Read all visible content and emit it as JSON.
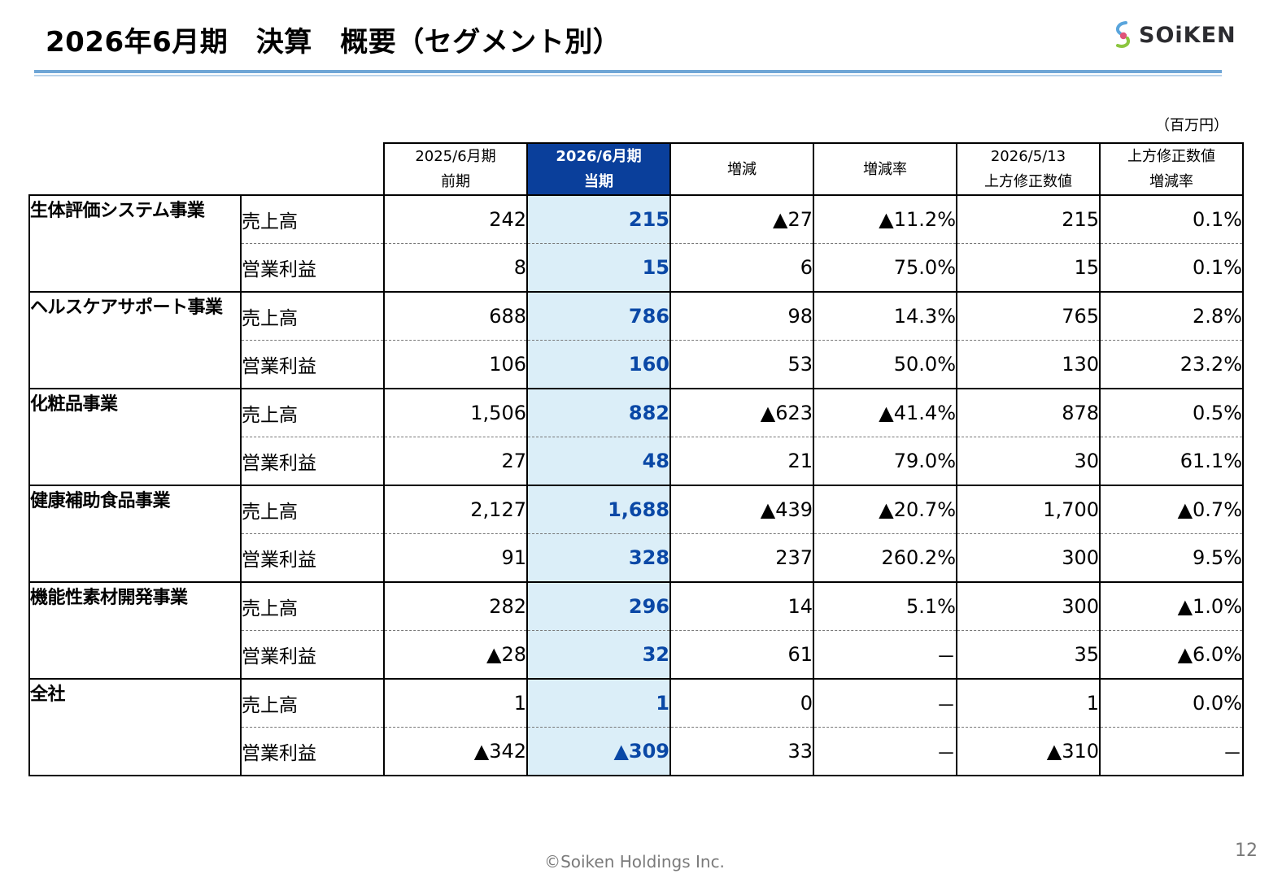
{
  "header": {
    "title": "2026年6月期　決算　概要（セグメント別）",
    "logo_text": "SOiKEN",
    "logo_icon": "soiken-logo-icon",
    "unit": "（百万円）"
  },
  "table": {
    "columns": [
      {
        "line1": "2025/6月期",
        "line2": "前期"
      },
      {
        "line1": "2026/6月期",
        "line2": "当期"
      },
      {
        "line1": "増減",
        "line2": ""
      },
      {
        "line1": "増減率",
        "line2": ""
      },
      {
        "line1": "2026/5/13",
        "line2": "上方修正数値"
      },
      {
        "line1": "上方修正数値",
        "line2": "増減率"
      }
    ],
    "segments": [
      {
        "name": "生体評価システム事業",
        "rows": [
          {
            "item": "売上高",
            "values": [
              "242",
              "215",
              "▲27",
              "▲11.2%",
              "215",
              "0.1%"
            ]
          },
          {
            "item": "営業利益",
            "values": [
              "8",
              "15",
              "6",
              "75.0%",
              "15",
              "0.1%"
            ]
          }
        ]
      },
      {
        "name": "ヘルスケアサポート事業",
        "rows": [
          {
            "item": "売上高",
            "values": [
              "688",
              "786",
              "98",
              "14.3%",
              "765",
              "2.8%"
            ]
          },
          {
            "item": "営業利益",
            "values": [
              "106",
              "160",
              "53",
              "50.0%",
              "130",
              "23.2%"
            ]
          }
        ]
      },
      {
        "name": "化粧品事業",
        "rows": [
          {
            "item": "売上高",
            "values": [
              "1,506",
              "882",
              "▲623",
              "▲41.4%",
              "878",
              "0.5%"
            ]
          },
          {
            "item": "営業利益",
            "values": [
              "27",
              "48",
              "21",
              "79.0%",
              "30",
              "61.1%"
            ]
          }
        ]
      },
      {
        "name": "健康補助食品事業",
        "rows": [
          {
            "item": "売上高",
            "values": [
              "2,127",
              "1,688",
              "▲439",
              "▲20.7%",
              "1,700",
              "▲0.7%"
            ]
          },
          {
            "item": "営業利益",
            "values": [
              "91",
              "328",
              "237",
              "260.2%",
              "300",
              "9.5%"
            ]
          }
        ]
      },
      {
        "name": "機能性素材開発事業",
        "rows": [
          {
            "item": "売上高",
            "values": [
              "282",
              "296",
              "14",
              "5.1%",
              "300",
              "▲1.0%"
            ]
          },
          {
            "item": "営業利益",
            "values": [
              "▲28",
              "32",
              "61",
              "－",
              "35",
              "▲6.0%"
            ]
          }
        ]
      },
      {
        "name": "全社",
        "rows": [
          {
            "item": "売上高",
            "values": [
              "1",
              "1",
              "0",
              "－",
              "1",
              "0.0%"
            ]
          },
          {
            "item": "営業利益",
            "values": [
              "▲342",
              "▲309",
              "33",
              "－",
              "▲310",
              "－"
            ]
          }
        ]
      }
    ]
  },
  "footer": {
    "copyright": "©Soiken Holdings Inc.",
    "page_number": "12"
  },
  "colors": {
    "rule": "#6fa6d6",
    "current_header_bg": "#0a3f9b",
    "current_cell_bg": "#dbeef8",
    "current_text": "#0a48a6"
  }
}
